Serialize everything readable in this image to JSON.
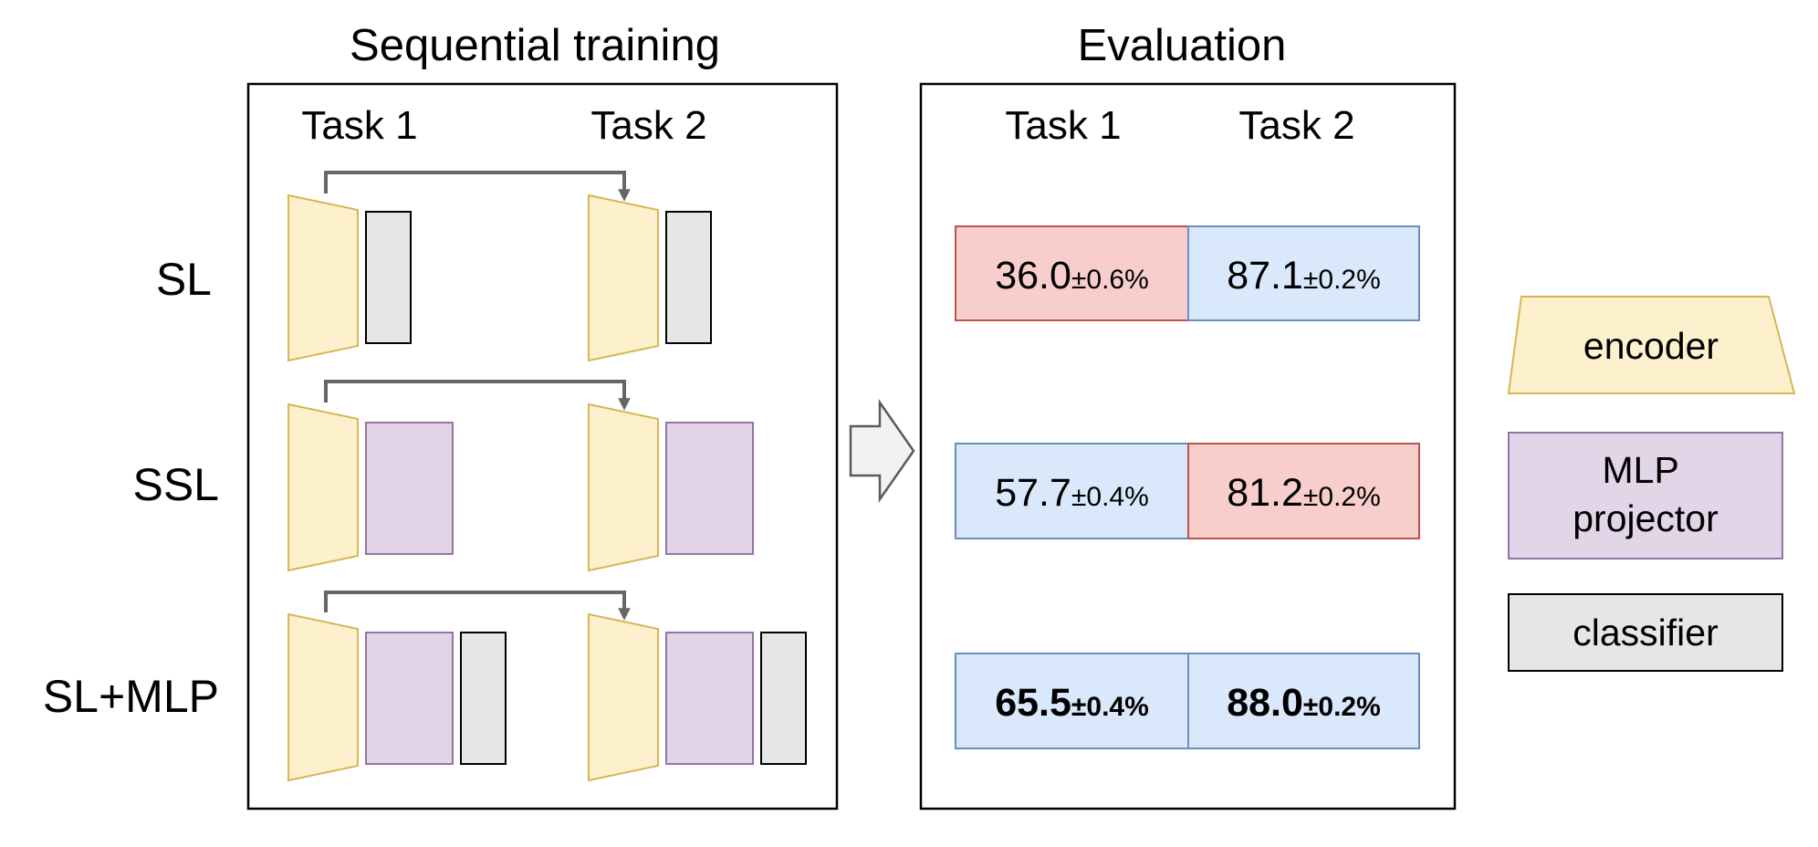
{
  "training": {
    "title": "Sequential training",
    "task_labels": [
      "Task 1",
      "Task 2"
    ]
  },
  "evaluation": {
    "title": "Evaluation",
    "task_labels": [
      "Task 1",
      "Task 2"
    ]
  },
  "rows": [
    {
      "label": "SL",
      "results": [
        {
          "value": "36.0",
          "std": "±0.6%",
          "status": "forgetting",
          "bold": false
        },
        {
          "value": "87.1",
          "std": "±0.2%",
          "status": "normal",
          "bold": false
        }
      ]
    },
    {
      "label": "SSL",
      "results": [
        {
          "value": "57.7",
          "std": "±0.4%",
          "status": "normal",
          "bold": false
        },
        {
          "value": "81.2",
          "std": "±0.2%",
          "status": "forgetting",
          "bold": false
        }
      ]
    },
    {
      "label": "SL+MLP",
      "results": [
        {
          "value": "65.5",
          "std": "±0.4%",
          "status": "normal",
          "bold": true
        },
        {
          "value": "88.0",
          "std": "±0.2%",
          "status": "normal",
          "bold": true
        }
      ]
    }
  ],
  "legend": {
    "encoder": "encoder",
    "projector_line1": "MLP",
    "projector_line2": "projector",
    "classifier": "classifier"
  },
  "colors": {
    "encoder_fill": "#fdf1cd",
    "encoder_stroke": "#d6b655",
    "projector_fill": "#e1d5e7",
    "projector_stroke": "#9673a6",
    "classifier_fill": "#e6e6e6",
    "classifier_stroke": "#000000",
    "normal_fill": "#dae8fc",
    "normal_stroke": "#6c8ebf",
    "forgetting_fill": "#f8cecc",
    "forgetting_stroke": "#b85450",
    "connector": "#666666"
  }
}
